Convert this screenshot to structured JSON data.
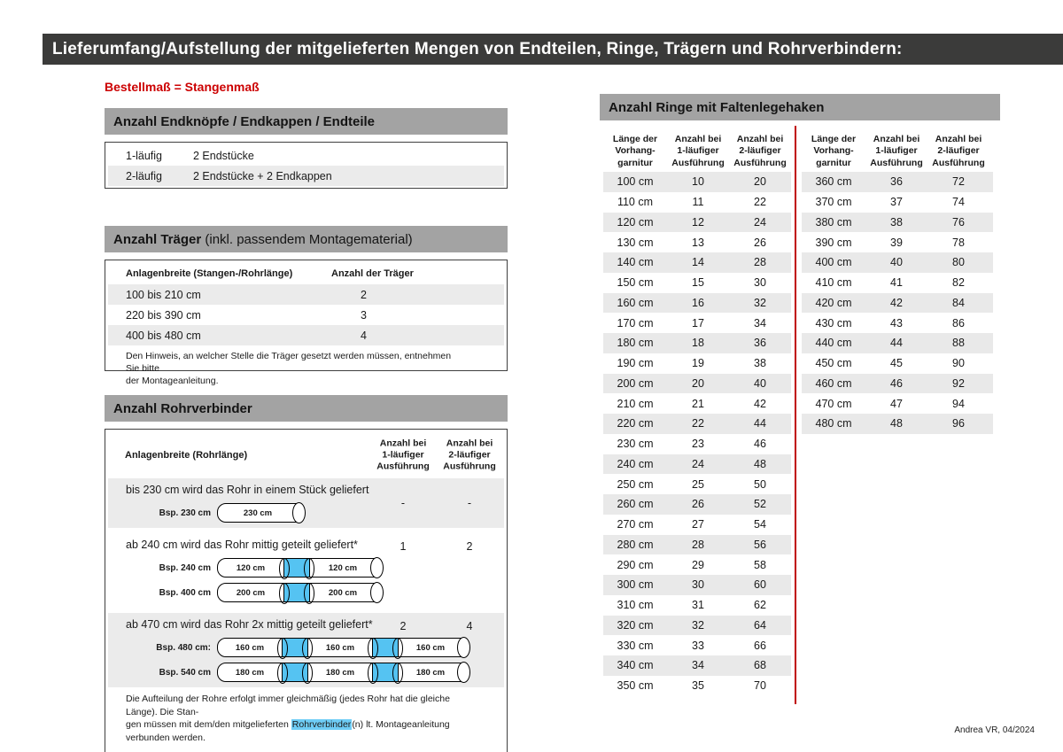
{
  "header": {
    "title": "Lieferumfang/Aufstellung der mitgelieferten Mengen von Endteilen, Ringe, Trägern und Rohrverbindern:"
  },
  "footer": {
    "credit": "Andrea VR, 04/2024"
  },
  "colors": {
    "title_bar": "#3b3b3a",
    "section_header_gray": "#a3a3a3",
    "row_stripe_gray": "#ebebeb",
    "accent_red": "#cc0001",
    "connector_blue": "#55c3f2"
  },
  "left": {
    "subtitle": "Bestellmaß = Stangenmaß",
    "endteile": {
      "title": "Anzahl Endknöpfe / Endkappen / Endteile",
      "rows": [
        {
          "label": "1-läufig",
          "value": "2 Endstücke"
        },
        {
          "label": "2-läufig",
          "value": "2 Endstücke + 2 Endkappen"
        }
      ]
    },
    "traeger": {
      "title_bold": "Anzahl Träger",
      "title_normal": " (inkl. passendem Montagematerial)",
      "columns": {
        "width": "Anlagenbreite (Stangen-/Rohrlänge)",
        "count": "Anzahl der Träger"
      },
      "rows": [
        {
          "range": "100 bis 210 cm",
          "count": "2"
        },
        {
          "range": "220 bis 390 cm",
          "count": "3"
        },
        {
          "range": "400 bis 480 cm",
          "count": "4"
        }
      ],
      "note": "Den Hinweis, an welcher Stelle die Träger gesetzt werden müssen, entnehmen Sie bitte\nder Montageanleitung."
    },
    "rohrverbinder": {
      "title": "Anzahl Rohrverbinder",
      "columns": {
        "width": "Anlagenbreite (Rohrlänge)",
        "count1": "Anzahl bei\n1-läufiger\nAusführung",
        "count2": "Anzahl bei\n2-läufiger\nAusführung"
      },
      "sections": [
        {
          "description": "bis 230 cm wird das Rohr in einem Stück geliefert",
          "count1": "-",
          "count2": "-",
          "rods": [
            {
              "label": "Bsp. 230 cm",
              "segments": [
                {
                  "text": "230 cm"
                }
              ]
            }
          ]
        },
        {
          "description": "ab 240 cm wird das Rohr mittig geteilt geliefert*",
          "count1": "1",
          "count2": "2",
          "rods": [
            {
              "label": "Bsp. 240 cm",
              "segments": [
                {
                  "text": "120 cm"
                },
                {
                  "text": "120 cm"
                }
              ]
            },
            {
              "label": "Bsp. 400 cm",
              "segments": [
                {
                  "text": "200 cm"
                },
                {
                  "text": "200 cm"
                }
              ]
            }
          ]
        },
        {
          "description": "ab 470 cm wird das Rohr 2x mittig geteilt geliefert*",
          "count1": "2",
          "count2": "4",
          "rods": [
            {
              "label": "Bsp. 480 cm:",
              "segments": [
                {
                  "text": "160 cm"
                },
                {
                  "text": "160 cm"
                },
                {
                  "text": "160 cm"
                }
              ]
            },
            {
              "label": "Bsp. 540 cm",
              "segments": [
                {
                  "text": "180 cm"
                },
                {
                  "text": "180 cm"
                },
                {
                  "text": "180 cm"
                }
              ]
            }
          ]
        }
      ],
      "note_line1": "Die Aufteilung der Rohre erfolgt immer gleichmäßig (jedes Rohr hat die gleiche Länge). Die Stan-",
      "note_line2_pre": "gen müssen mit dem/den mitgelieferten ",
      "note_highlight": "Rohrverbinder",
      "note_line2_post": "(n) lt. Montageanleitung verbunden werden."
    }
  },
  "rings": {
    "title": "Anzahl Ringe mit Faltenlegehaken",
    "columns": {
      "length": "Länge der\nVorhang-\ngarnitur",
      "count1": "Anzahl bei\n1-läufiger\nAusführung",
      "count2": "Anzahl bei\n2-läufiger\nAusführung"
    },
    "table_left": [
      {
        "length": "100 cm",
        "c1": "10",
        "c2": "20"
      },
      {
        "length": "110 cm",
        "c1": "11",
        "c2": "22"
      },
      {
        "length": "120 cm",
        "c1": "12",
        "c2": "24"
      },
      {
        "length": "130 cm",
        "c1": "13",
        "c2": "26"
      },
      {
        "length": "140 cm",
        "c1": "14",
        "c2": "28"
      },
      {
        "length": "150 cm",
        "c1": "15",
        "c2": "30"
      },
      {
        "length": "160 cm",
        "c1": "16",
        "c2": "32"
      },
      {
        "length": "170 cm",
        "c1": "17",
        "c2": "34"
      },
      {
        "length": "180 cm",
        "c1": "18",
        "c2": "36"
      },
      {
        "length": "190 cm",
        "c1": "19",
        "c2": "38"
      },
      {
        "length": "200 cm",
        "c1": "20",
        "c2": "40"
      },
      {
        "length": "210 cm",
        "c1": "21",
        "c2": "42"
      },
      {
        "length": "220 cm",
        "c1": "22",
        "c2": "44"
      },
      {
        "length": "230 cm",
        "c1": "23",
        "c2": "46"
      },
      {
        "length": "240 cm",
        "c1": "24",
        "c2": "48"
      },
      {
        "length": "250 cm",
        "c1": "25",
        "c2": "50"
      },
      {
        "length": "260 cm",
        "c1": "26",
        "c2": "52"
      },
      {
        "length": "270 cm",
        "c1": "27",
        "c2": "54"
      },
      {
        "length": "280 cm",
        "c1": "28",
        "c2": "56"
      },
      {
        "length": "290 cm",
        "c1": "29",
        "c2": "58"
      },
      {
        "length": "300 cm",
        "c1": "30",
        "c2": "60"
      },
      {
        "length": "310 cm",
        "c1": "31",
        "c2": "62"
      },
      {
        "length": "320 cm",
        "c1": "32",
        "c2": "64"
      },
      {
        "length": "330 cm",
        "c1": "33",
        "c2": "66"
      },
      {
        "length": "340 cm",
        "c1": "34",
        "c2": "68"
      },
      {
        "length": "350 cm",
        "c1": "35",
        "c2": "70"
      }
    ],
    "table_right": [
      {
        "length": "360 cm",
        "c1": "36",
        "c2": "72"
      },
      {
        "length": "370 cm",
        "c1": "37",
        "c2": "74"
      },
      {
        "length": "380 cm",
        "c1": "38",
        "c2": "76"
      },
      {
        "length": "390 cm",
        "c1": "39",
        "c2": "78"
      },
      {
        "length": "400 cm",
        "c1": "40",
        "c2": "80"
      },
      {
        "length": "410 cm",
        "c1": "41",
        "c2": "82"
      },
      {
        "length": "420 cm",
        "c1": "42",
        "c2": "84"
      },
      {
        "length": "430 cm",
        "c1": "43",
        "c2": "86"
      },
      {
        "length": "440 cm",
        "c1": "44",
        "c2": "88"
      },
      {
        "length": "450 cm",
        "c1": "45",
        "c2": "90"
      },
      {
        "length": "460 cm",
        "c1": "46",
        "c2": "92"
      },
      {
        "length": "470 cm",
        "c1": "47",
        "c2": "94"
      },
      {
        "length": "480 cm",
        "c1": "48",
        "c2": "96"
      }
    ]
  }
}
